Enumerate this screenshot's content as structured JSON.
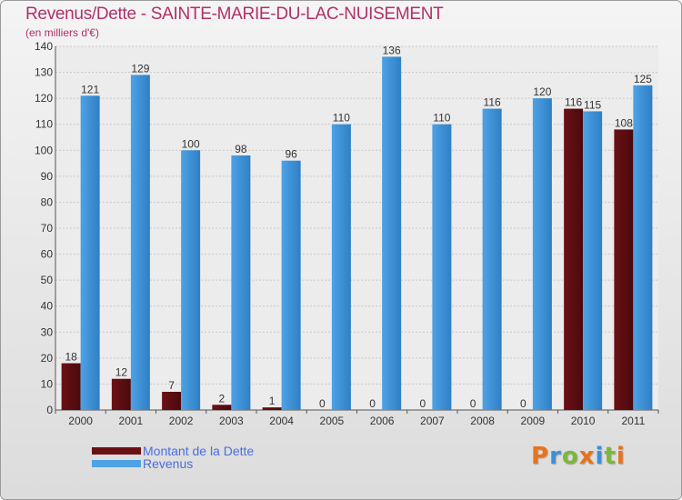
{
  "title": "Revenus/Dette - SAINTE-MARIE-DU-LAC-NUISEMENT",
  "subtitle": "(en milliers d'€)",
  "chart_data": {
    "type": "bar",
    "categories": [
      "2000",
      "2001",
      "2002",
      "2003",
      "2004",
      "2005",
      "2006",
      "2007",
      "2008",
      "2009",
      "2010",
      "2011"
    ],
    "series": [
      {
        "name": "Montant de la Dette",
        "color": "#6b1115",
        "values": [
          18,
          12,
          7,
          2,
          1,
          0,
          0,
          0,
          0,
          0,
          116,
          108
        ]
      },
      {
        "name": "Revenus",
        "color": "#4ea2e6",
        "values": [
          121,
          129,
          100,
          98,
          96,
          110,
          136,
          110,
          116,
          120,
          115,
          125
        ]
      }
    ],
    "ylim": [
      0,
      140
    ],
    "yticks": [
      0,
      10,
      20,
      30,
      40,
      50,
      60,
      70,
      80,
      90,
      100,
      110,
      120,
      130,
      140
    ],
    "grid": true
  },
  "legend": {
    "items": [
      {
        "label": "Montant de la Dette",
        "color": "#6b1115"
      },
      {
        "label": "Revenus",
        "color": "#4ea2e6"
      }
    ]
  },
  "logo": {
    "letters": [
      "P",
      "r",
      "o",
      "x",
      "i",
      "t",
      "i"
    ],
    "colors": [
      "#e8731c",
      "#3d8fd9",
      "#7bb83a",
      "#e8731c",
      "#3d8fd9",
      "#7bb83a",
      "#e8731c"
    ]
  }
}
